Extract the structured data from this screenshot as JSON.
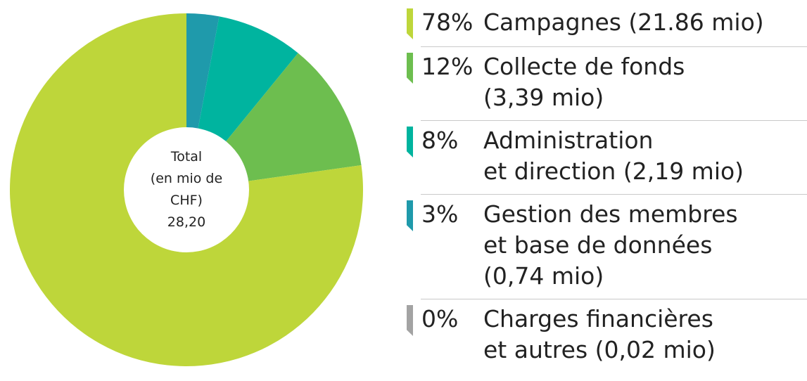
{
  "chart_data": {
    "type": "pie",
    "center_label": [
      "Total",
      "(en mio de",
      "CHF)",
      "28,20"
    ],
    "categories": [
      [
        "Campagnes (21.86 mio)"
      ],
      [
        "Collecte de fonds",
        "(3,39 mio)"
      ],
      [
        "Administration",
        "et direction (2,19 mio)"
      ],
      [
        "Gestion des membres",
        "et base de données",
        "(0,74 mio)"
      ],
      [
        "Charges financières",
        "et autres (0,02 mio)"
      ]
    ],
    "values": [
      78,
      12,
      8,
      3,
      0
    ],
    "value_labels": [
      "78%",
      "12%",
      "8%",
      "3%",
      "0%"
    ],
    "colors": [
      "#bed63a",
      "#6dbe4f",
      "#00b49f",
      "#1f9aab",
      "#a3a3a3"
    ],
    "hole": true
  }
}
